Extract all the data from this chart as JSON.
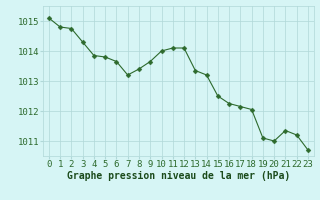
{
  "x": [
    0,
    1,
    2,
    3,
    4,
    5,
    6,
    7,
    8,
    9,
    10,
    11,
    12,
    13,
    14,
    15,
    16,
    17,
    18,
    19,
    20,
    21,
    22,
    23
  ],
  "y": [
    1015.1,
    1014.8,
    1014.75,
    1014.3,
    1013.85,
    1013.8,
    1013.65,
    1013.2,
    1013.4,
    1013.65,
    1014.0,
    1014.1,
    1014.1,
    1013.35,
    1013.2,
    1012.5,
    1012.25,
    1012.15,
    1012.05,
    1011.1,
    1011.0,
    1011.35,
    1011.2,
    1010.7
  ],
  "line_color": "#2d6a2d",
  "marker": "D",
  "marker_size": 2.5,
  "background_color": "#d6f5f5",
  "grid_color": "#b0d8d8",
  "xlabel": "Graphe pression niveau de la mer (hPa)",
  "xlabel_color": "#1a4a1a",
  "tick_label_color": "#2d6a2d",
  "ylim": [
    1010.5,
    1015.5
  ],
  "xlim": [
    -0.5,
    23.5
  ],
  "yticks": [
    1011,
    1012,
    1013,
    1014,
    1015
  ],
  "xtick_labels": [
    "0",
    "1",
    "2",
    "3",
    "4",
    "5",
    "6",
    "7",
    "8",
    "9",
    "10",
    "11",
    "12",
    "13",
    "14",
    "15",
    "16",
    "17",
    "18",
    "19",
    "20",
    "21",
    "22",
    "23"
  ],
  "xlabel_fontsize": 7.0,
  "tick_fontsize": 6.5
}
